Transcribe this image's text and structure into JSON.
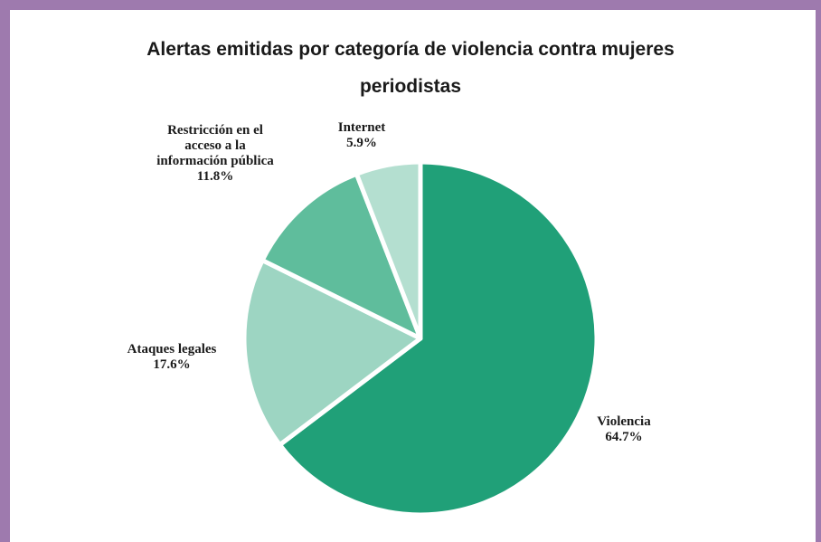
{
  "chart_data": {
    "type": "pie",
    "title": "Alertas emitidas por categoría de violencia contra mujeres periodistas",
    "title_lines": [
      "Alertas emitidas por categoría de violencia contra mujeres",
      "periodistas"
    ],
    "slices": [
      {
        "name": "Violencia",
        "value": 64.7,
        "label_lines": [
          "Violencia"
        ],
        "percent_label": "64.7%",
        "color": "#20a078"
      },
      {
        "name": "Ataques legales",
        "value": 17.6,
        "label_lines": [
          "Ataques legales"
        ],
        "percent_label": "17.6%",
        "color": "#9dd5c2"
      },
      {
        "name": "Restricción en el acceso a la información pública",
        "value": 11.8,
        "label_lines": [
          "Restricción en el",
          "acceso a la",
          "información pública"
        ],
        "percent_label": "11.8%",
        "color": "#5fbd9c"
      },
      {
        "name": "Internet",
        "value": 5.9,
        "label_lines": [
          "Internet"
        ],
        "percent_label": "5.9%",
        "color": "#b4dfd0"
      }
    ],
    "start_angle_deg": 0,
    "direction": "clockwise",
    "legend": "none"
  },
  "colors": {
    "frame": "#9e7aae",
    "background": "#ffffff",
    "text": "#1a1a1a"
  }
}
